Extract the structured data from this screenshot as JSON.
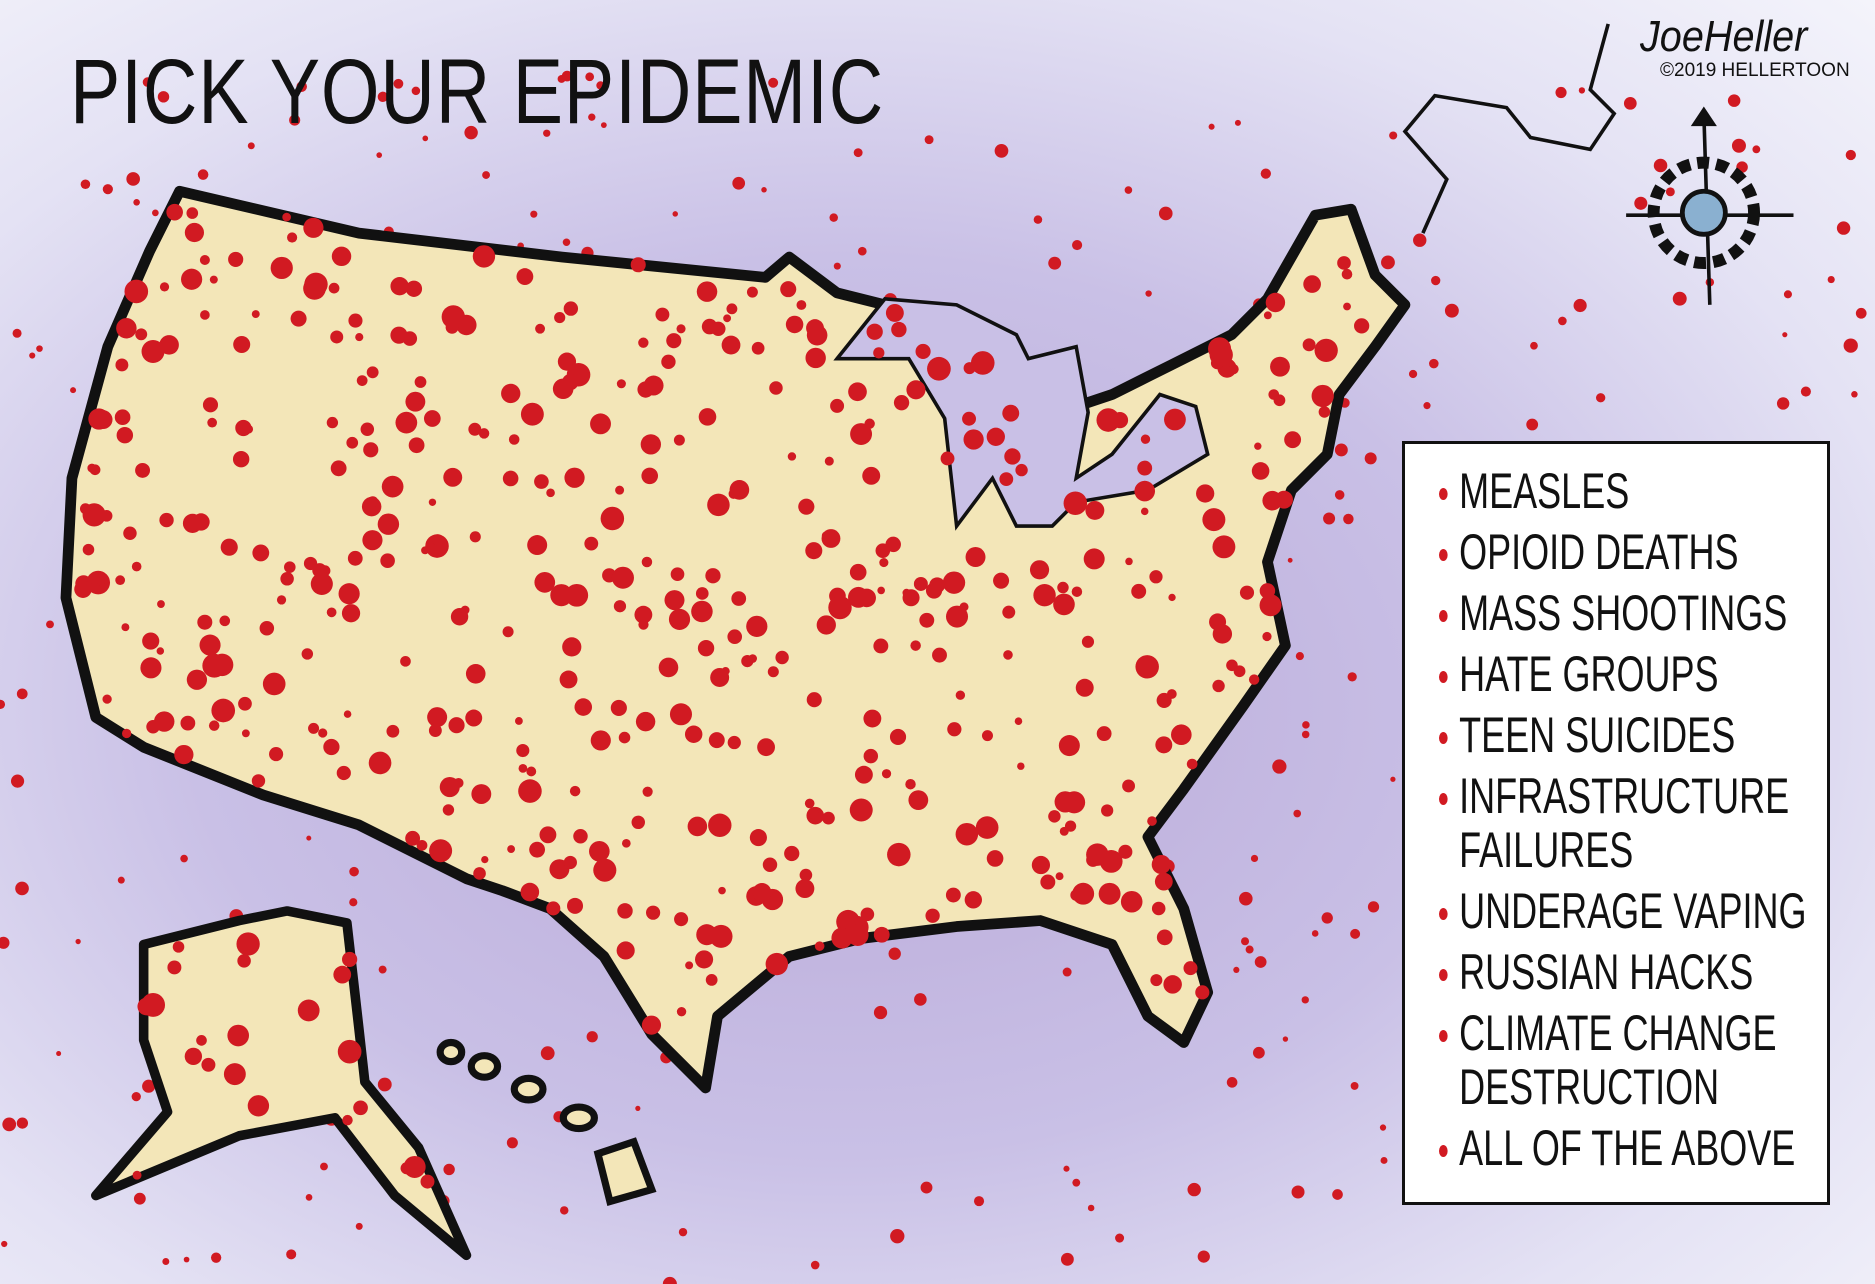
{
  "title": "PICK YOUR EPIDEMIC",
  "signature": "JoeHeller",
  "copyright": "©2019 HELLERTOON",
  "colors": {
    "dots": "#d11a22",
    "land": "#f3e6b8",
    "outline": "#111111",
    "background": "#c9c0e6"
  },
  "icons": [
    "compass-rose-icon"
  ],
  "legend": {
    "items": [
      {
        "label": "MEASLES"
      },
      {
        "label": "OPIOID DEATHS"
      },
      {
        "label": "MASS SHOOTINGS"
      },
      {
        "label": "HATE GROUPS"
      },
      {
        "label": "TEEN SUICIDES"
      },
      {
        "label": "INFRASTRUCTURE\nFAILURES"
      },
      {
        "label": "UNDERAGE VAPING"
      },
      {
        "label": "RUSSIAN HACKS"
      },
      {
        "label": "CLIMATE CHANGE\nDESTRUCTION"
      },
      {
        "label": "ALL OF THE ABOVE"
      }
    ]
  }
}
